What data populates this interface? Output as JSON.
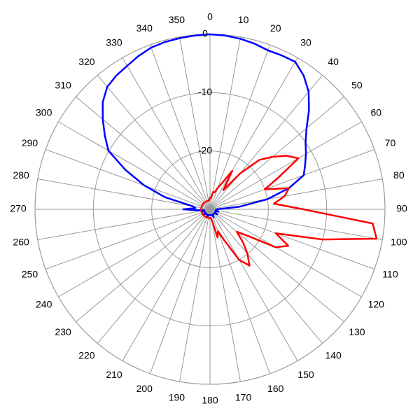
{
  "chart_data": {
    "type": "polar",
    "theta": [
      0,
      5,
      10,
      15,
      20,
      25,
      30,
      35,
      40,
      45,
      50,
      55,
      60,
      65,
      70,
      75,
      80,
      85,
      90,
      95,
      100,
      105,
      110,
      115,
      120,
      125,
      130,
      135,
      140,
      145,
      150,
      155,
      160,
      165,
      170,
      175,
      180,
      185,
      190,
      195,
      200,
      205,
      210,
      215,
      220,
      225,
      230,
      235,
      240,
      245,
      250,
      255,
      260,
      265,
      270,
      275,
      280,
      285,
      290,
      295,
      300,
      305,
      310,
      315,
      320,
      325,
      330,
      335,
      340,
      345,
      350,
      355
    ],
    "series": [
      {
        "color": "#0000ff",
        "values": [
          0,
          -0.1,
          -0.3,
          -0.6,
          -1,
          -0.9,
          -0.8,
          -2,
          -3.7,
          -6,
          -8.4,
          -10,
          -11,
          -12,
          -12.9,
          -16,
          -20,
          -25,
          -28.8,
          -29,
          -29,
          -28.5,
          -29,
          -29,
          -29,
          -28.5,
          -29,
          -29,
          -29,
          -29,
          -29,
          -28.5,
          -29,
          -29,
          -29,
          -29,
          -29,
          -29,
          -29,
          -29,
          -28.5,
          -29,
          -29,
          -29,
          -29,
          -29,
          -28.5,
          -29,
          -29,
          -29,
          -29,
          -28.5,
          -29,
          -28,
          -25.4,
          -27.5,
          -27,
          -22,
          -18,
          -14,
          -9.9,
          -8,
          -6,
          -4,
          -2.6,
          -2,
          -1.6,
          -1,
          -0.5,
          -0.3,
          -0.2,
          -0.1
        ]
      },
      {
        "color": "#ff0000",
        "values": [
          -28,
          -28,
          -27,
          -27,
          -26,
          -25,
          -22.4,
          -26,
          -22,
          -18,
          -16,
          -14,
          -12.5,
          -17,
          -20,
          -16,
          -17,
          -19,
          -14,
          -2,
          -1,
          -10,
          -18,
          -15.2,
          -17,
          -22,
          -24,
          -22,
          -20,
          -18.2,
          -20,
          -24,
          -26,
          -25,
          -28,
          -28.5,
          -28.5,
          -28.5,
          -28.5,
          -28.5,
          -28.5,
          -28.5,
          -28.5,
          -28.5,
          -28.5,
          -28.5,
          -28.5,
          -28.5,
          -28.5,
          -28.5,
          -28.5,
          -28.5,
          -28.5,
          -28.5,
          -28.5,
          -28.5,
          -28.5,
          -28.5,
          -28.5,
          -28.5,
          -28.5,
          -28.5,
          -28.5,
          -28.5,
          -28.5,
          -28.5,
          -28.5,
          -28.5,
          -28.5,
          -28.5,
          -28.5,
          -28.5
        ]
      }
    ],
    "rlim": [
      -30,
      0
    ],
    "rticks": [
      0,
      -10,
      -20
    ],
    "thetaticks": [
      0,
      10,
      20,
      30,
      40,
      50,
      60,
      70,
      80,
      90,
      100,
      110,
      120,
      130,
      140,
      150,
      160,
      170,
      180,
      190,
      200,
      210,
      220,
      230,
      240,
      250,
      260,
      270,
      280,
      290,
      300,
      310,
      320,
      330,
      340,
      350
    ],
    "grid": true
  }
}
